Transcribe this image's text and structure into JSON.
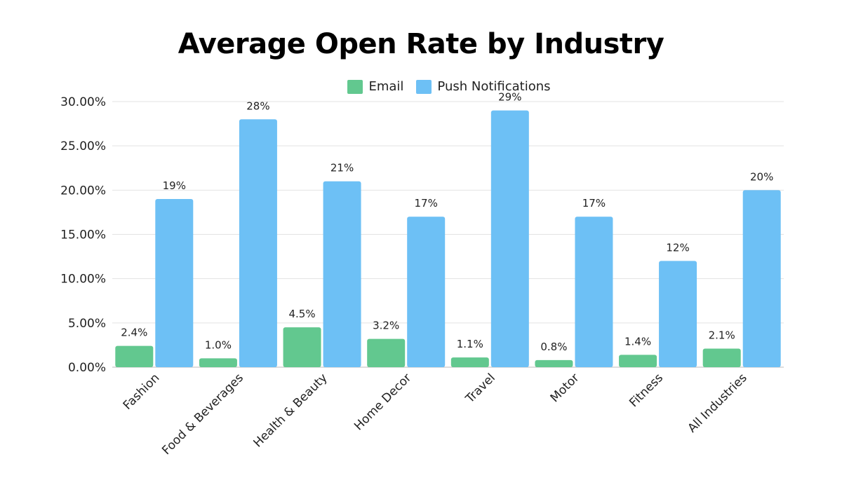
{
  "chart_data": {
    "type": "bar",
    "title": "Average Open Rate by Industry",
    "xlabel": "",
    "ylabel": "",
    "ylim": [
      0,
      30
    ],
    "yticks": [
      "0.00%",
      "5.00%",
      "10.00%",
      "15.00%",
      "20.00%",
      "25.00%",
      "30.00%"
    ],
    "ytick_values": [
      0,
      5,
      10,
      15,
      20,
      25,
      30
    ],
    "grid": true,
    "legend_position": "top-center",
    "categories": [
      "Fashion",
      "Food & Beverages",
      "Health & Beauty",
      "Home Decor",
      "Travel",
      "Motor",
      "Fitness",
      "All Industries"
    ],
    "series": [
      {
        "name": "Email",
        "color": "#62C88F",
        "values": [
          2.4,
          1.0,
          4.5,
          3.2,
          1.1,
          0.8,
          1.4,
          2.1
        ],
        "labels": [
          "2.4%",
          "1.0%",
          "4.5%",
          "3.2%",
          "1.1%",
          "0.8%",
          "1.4%",
          "2.1%"
        ]
      },
      {
        "name": "Push Notifications",
        "color": "#6DC0F5",
        "values": [
          19,
          28,
          21,
          17,
          29,
          17,
          12,
          20
        ],
        "labels": [
          "19%",
          "28%",
          "21%",
          "17%",
          "29%",
          "17%",
          "12%",
          "20%"
        ]
      }
    ]
  }
}
